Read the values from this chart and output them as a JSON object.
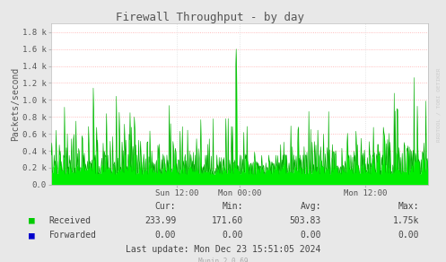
{
  "title": "Firewall Throughput - by day",
  "ylabel": "Packets/second",
  "ytick_vals": [
    0,
    200,
    400,
    600,
    800,
    1000,
    1200,
    1400,
    1600,
    1800
  ],
  "ytick_labels": [
    "0.0",
    "0.2 k",
    "0.4 k",
    "0.6 k",
    "0.8 k",
    "1.0 k",
    "1.2 k",
    "1.4 k",
    "1.6 k",
    "1.8 k"
  ],
  "ylim": [
    0,
    1900
  ],
  "xtick_positions": [
    0.333,
    0.5,
    0.833
  ],
  "xtick_labels": [
    "Sun 12:00",
    "Mon 00:00",
    "Mon 12:00"
  ],
  "bg_color": "#e8e8e8",
  "plot_bg_color": "#ffffff",
  "grid_color_h": "#ffaaaa",
  "grid_color_v": "#dddddd",
  "fill_color": "#00ee00",
  "fill_edge_color": "#00aa00",
  "legend_received_color": "#00cc00",
  "legend_forwarded_color": "#0000cc",
  "title_color": "#555555",
  "label_color": "#555555",
  "tick_color": "#999999",
  "watermark": "RRDTOOL / TOBI OETIKER",
  "watermark_color": "#cccccc",
  "munin_version": "Munin 2.0.69",
  "munin_color": "#aaaaaa",
  "stats_cur_received": "233.99",
  "stats_min_received": "171.60",
  "stats_avg_received": "503.83",
  "stats_max_received": "1.75k",
  "stats_cur_forwarded": "0.00",
  "stats_min_forwarded": "0.00",
  "stats_avg_forwarded": "0.00",
  "stats_max_forwarded": "0.00",
  "last_update": "Last update: Mon Dec 23 15:51:05 2024",
  "seed": 12345,
  "n_points": 800
}
